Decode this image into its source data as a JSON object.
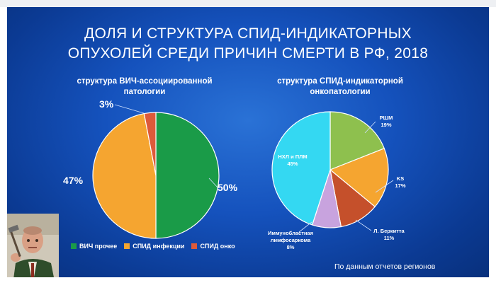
{
  "title_line1": "ДОЛЯ И СТРУКТУРА СПИД-ИНДИКАТОРНЫХ",
  "title_line2": "ОПУХОЛЕЙ СРЕДИ ПРИЧИН СМЕРТИ В РФ, 2018",
  "source_note": "По данным отчетов регионов",
  "colors": {
    "slide_bg": "#1552bd",
    "green": "#1a9b48",
    "orange": "#f5a530",
    "red": "#dd5a3a",
    "cyan": "#34d8f2",
    "lightgreen": "#8ec04e",
    "brown": "#c5502b",
    "lavender": "#c8a3de"
  },
  "chart_data": [
    {
      "type": "pie",
      "title": "структура ВИЧ-ассоциированной патологии",
      "slices": [
        {
          "label": "ВИЧ прочее",
          "value": 50,
          "value_label": "50%",
          "color": "#1a9b48"
        },
        {
          "label": "СПИД инфекции",
          "value": 47,
          "value_label": "47%",
          "color": "#f5a530"
        },
        {
          "label": "СПИД онко",
          "value": 3,
          "value_label": "3%",
          "color": "#dd5a3a"
        }
      ],
      "legend_position": "bottom"
    },
    {
      "type": "pie",
      "title": "структура СПИД-индикаторной онкопатологии",
      "slices": [
        {
          "label": "РШМ",
          "value": 19,
          "value_label": "19%",
          "color": "#8ec04e"
        },
        {
          "label": "KS",
          "value": 17,
          "value_label": "17%",
          "color": "#f5a530"
        },
        {
          "label": "Л. Беркитта",
          "value": 11,
          "value_label": "11%",
          "color": "#c5502b"
        },
        {
          "label": "Иммунобластная лимфосаркома",
          "value": 8,
          "value_label": "8%",
          "color": "#c8a3de"
        },
        {
          "label": "НХЛ и ПЛМ",
          "value": 45,
          "value_label": "45%",
          "color": "#34d8f2"
        }
      ],
      "legend_position": "none"
    }
  ]
}
